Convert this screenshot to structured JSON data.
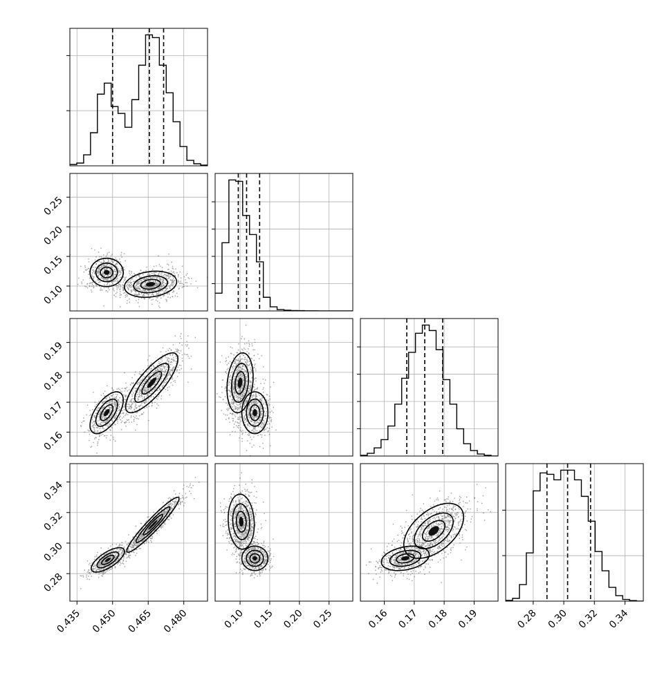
{
  "chart_data": {
    "type": "corner",
    "grid": true,
    "parameters": [
      {
        "index": 0,
        "range": [
          0.432,
          0.49
        ],
        "ticks": [
          0.435,
          0.45,
          0.465,
          0.48
        ],
        "tick_labels": [
          "0.435",
          "0.450",
          "0.465",
          "0.480"
        ],
        "quantiles": [
          0.45,
          0.4655,
          0.4715
        ]
      },
      {
        "index": 1,
        "range": [
          0.058,
          0.29
        ],
        "ticks": [
          0.1,
          0.15,
          0.2,
          0.25
        ],
        "tick_labels": [
          "0.10",
          "0.15",
          "0.20",
          "0.25"
        ],
        "quantiles": [
          0.097,
          0.111,
          0.133
        ]
      },
      {
        "index": 2,
        "range": [
          0.152,
          0.198
        ],
        "ticks": [
          0.16,
          0.17,
          0.18,
          0.19
        ],
        "tick_labels": [
          "0.16",
          "0.17",
          "0.18",
          "0.19"
        ],
        "quantiles": [
          0.1675,
          0.1735,
          0.1795
        ]
      },
      {
        "index": 3,
        "range": [
          0.262,
          0.352
        ],
        "ticks": [
          0.28,
          0.3,
          0.32,
          0.34
        ],
        "tick_labels": [
          "0.28",
          "0.30",
          "0.32",
          "0.34"
        ],
        "quantiles": [
          0.289,
          0.3025,
          0.3175
        ]
      }
    ],
    "histograms": [
      {
        "param": 0,
        "bin_edges": [
          0.432,
          0.4349,
          0.4378,
          0.4407,
          0.4436,
          0.4465,
          0.4494,
          0.4523,
          0.4552,
          0.4581,
          0.461,
          0.4639,
          0.4668,
          0.4697,
          0.4726,
          0.4755,
          0.4784,
          0.4813,
          0.4842,
          0.4871,
          0.49
        ],
        "counts": [
          0.01,
          0.02,
          0.08,
          0.24,
          0.52,
          0.6,
          0.43,
          0.38,
          0.28,
          0.48,
          0.73,
          0.95,
          0.93,
          0.73,
          0.53,
          0.32,
          0.14,
          0.04,
          0.015,
          0.005
        ],
        "y_ticks": [
          0.0,
          0.4,
          0.8
        ]
      },
      {
        "param": 1,
        "bin_edges": [
          0.058,
          0.0696,
          0.0812,
          0.0928,
          0.1044,
          0.116,
          0.1276,
          0.1392,
          0.1508,
          0.1624,
          0.174,
          0.1856,
          0.1972,
          0.2088,
          0.2204,
          0.232,
          0.2436,
          0.2552,
          0.2668,
          0.2784,
          0.29
        ],
        "counts": [
          0.13,
          0.5,
          0.96,
          0.95,
          0.7,
          0.56,
          0.36,
          0.1,
          0.03,
          0.01,
          0.005,
          0.003,
          0.002,
          0.001,
          0.001,
          0.0,
          0.0,
          0.0,
          0.0,
          0.0
        ],
        "y_ticks": [
          0.0,
          0.2,
          0.4,
          0.6,
          0.8
        ]
      },
      {
        "param": 2,
        "bin_edges": [
          0.152,
          0.1543,
          0.1566,
          0.1589,
          0.1612,
          0.1635,
          0.1658,
          0.1681,
          0.1704,
          0.1727,
          0.175,
          0.1773,
          0.1796,
          0.1819,
          0.1842,
          0.1865,
          0.1888,
          0.1911,
          0.1934,
          0.1957,
          0.198
        ],
        "counts": [
          0.005,
          0.02,
          0.06,
          0.12,
          0.22,
          0.38,
          0.57,
          0.76,
          0.9,
          0.96,
          0.92,
          0.78,
          0.56,
          0.38,
          0.2,
          0.09,
          0.04,
          0.015,
          0.005,
          0.0
        ],
        "y_ticks": [
          0.0,
          0.2,
          0.4,
          0.6,
          0.8
        ]
      },
      {
        "param": 3,
        "bin_edges": [
          0.262,
          0.2665,
          0.271,
          0.2755,
          0.28,
          0.2845,
          0.289,
          0.2935,
          0.298,
          0.3025,
          0.307,
          0.3115,
          0.316,
          0.3205,
          0.325,
          0.3295,
          0.334,
          0.3385,
          0.343,
          0.3475,
          0.352
        ],
        "counts": [
          0.005,
          0.02,
          0.12,
          0.35,
          0.8,
          0.93,
          0.92,
          0.88,
          0.95,
          0.95,
          0.88,
          0.76,
          0.58,
          0.36,
          0.22,
          0.1,
          0.04,
          0.012,
          0.004,
          0.0
        ],
        "y_ticks": [
          0.0,
          0.33,
          0.66
        ]
      }
    ],
    "pairs": [
      {
        "x_param": 0,
        "y_param": 1,
        "modes": [
          {
            "mean": [
              0.4475,
              0.123
            ],
            "sd": [
              0.0035,
              0.012
            ],
            "rho": 0.0,
            "weight": 0.4
          },
          {
            "mean": [
              0.466,
              0.103
            ],
            "sd": [
              0.0055,
              0.011
            ],
            "rho": 0.2,
            "weight": 0.6
          }
        ]
      },
      {
        "x_param": 0,
        "y_param": 2,
        "modes": [
          {
            "mean": [
              0.4475,
              0.1665
            ],
            "sd": [
              0.0035,
              0.0035
            ],
            "rho": 0.6,
            "weight": 0.4
          },
          {
            "mean": [
              0.4665,
              0.1765
            ],
            "sd": [
              0.0055,
              0.005
            ],
            "rho": 0.8,
            "weight": 0.6
          }
        ]
      },
      {
        "x_param": 1,
        "y_param": 2,
        "modes": [
          {
            "mean": [
              0.1,
              0.1765
            ],
            "sd": [
              0.011,
              0.005
            ],
            "rho": 0.2,
            "weight": 0.6
          },
          {
            "mean": [
              0.125,
              0.1665
            ],
            "sd": [
              0.011,
              0.0035
            ],
            "rho": 0.0,
            "weight": 0.4
          }
        ]
      },
      {
        "x_param": 0,
        "y_param": 3,
        "modes": [
          {
            "mean": [
              0.448,
              0.289
            ],
            "sd": [
              0.0035,
              0.004
            ],
            "rho": 0.7,
            "weight": 0.4
          },
          {
            "mean": [
              0.467,
              0.312
            ],
            "sd": [
              0.0055,
              0.009
            ],
            "rho": 0.95,
            "weight": 0.6
          }
        ]
      },
      {
        "x_param": 1,
        "y_param": 3,
        "modes": [
          {
            "mean": [
              0.102,
              0.314
            ],
            "sd": [
              0.011,
              0.009
            ],
            "rho": -0.1,
            "weight": 0.6
          },
          {
            "mean": [
              0.125,
              0.29
            ],
            "sd": [
              0.011,
              0.004
            ],
            "rho": 0.0,
            "weight": 0.4
          }
        ]
      },
      {
        "x_param": 2,
        "y_param": 3,
        "modes": [
          {
            "mean": [
              0.1765,
              0.308
            ],
            "sd": [
              0.005,
              0.009
            ],
            "rho": 0.5,
            "weight": 0.6
          },
          {
            "mean": [
              0.167,
              0.29
            ],
            "sd": [
              0.004,
              0.004
            ],
            "rho": 0.3,
            "weight": 0.4
          }
        ]
      }
    ],
    "contour_levels": "1-sigma and 2-sigma density contours with shaded cores"
  }
}
